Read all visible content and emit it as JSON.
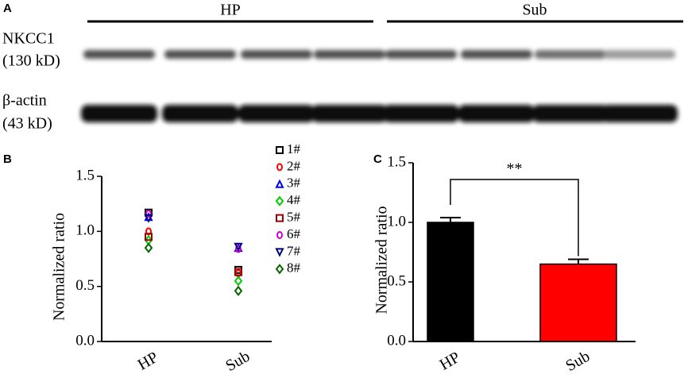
{
  "panels": {
    "a": "A",
    "b": "B",
    "c": "C"
  },
  "blot": {
    "groups": [
      "HP",
      "Sub"
    ],
    "rows": [
      {
        "label": "NKCC1",
        "size": "(130 kD)"
      },
      {
        "label": "β-actin",
        "size": "(43 kD)"
      }
    ]
  },
  "chart_data": [
    {
      "type": "scatter",
      "y_label": "Normalized ratio",
      "categories": [
        "HP",
        "Sub"
      ],
      "ylim": [
        0,
        1.5
      ],
      "yticks": [
        {
          "value": 0,
          "label": "0.0"
        },
        0.5,
        {
          "value": 1,
          "label": "1.0"
        },
        1.5
      ],
      "series": [
        {
          "name": "1#",
          "color": "#000000",
          "marker": "square",
          "values": [
            1.17,
            0.65
          ]
        },
        {
          "name": "2#",
          "color": "#ff0000",
          "marker": "circle",
          "values": [
            1.0,
            0.62
          ]
        },
        {
          "name": "3#",
          "color": "#0000ff",
          "marker": "triangle-up",
          "values": [
            1.13,
            0.85
          ]
        },
        {
          "name": "4#",
          "color": "#00cc00",
          "marker": "diamond",
          "values": [
            0.92,
            0.55
          ]
        },
        {
          "name": "5#",
          "color": "#990000",
          "marker": "square",
          "values": [
            0.95,
            0.63
          ]
        },
        {
          "name": "6#",
          "color": "#cc00cc",
          "marker": "circle",
          "values": [
            1.16,
            0.84
          ]
        },
        {
          "name": "7#",
          "color": "#000080",
          "marker": "triangle-down",
          "values": [
            1.12,
            0.86
          ]
        },
        {
          "name": "8#",
          "color": "#006600",
          "marker": "diamond",
          "values": [
            0.85,
            0.46
          ]
        }
      ]
    },
    {
      "type": "bar",
      "y_label": "Normalized ratio",
      "categories": [
        "HP",
        "Sub"
      ],
      "values": [
        1.0,
        0.65
      ],
      "errors": [
        0.04,
        0.04
      ],
      "colors": [
        "#000000",
        "#ff0000"
      ],
      "annotation": "**",
      "ylim": [
        0,
        1.5
      ],
      "yticks": [
        {
          "value": 0,
          "label": "0.0"
        },
        0.5,
        {
          "value": 1,
          "label": "1.0"
        },
        1.5
      ]
    }
  ]
}
